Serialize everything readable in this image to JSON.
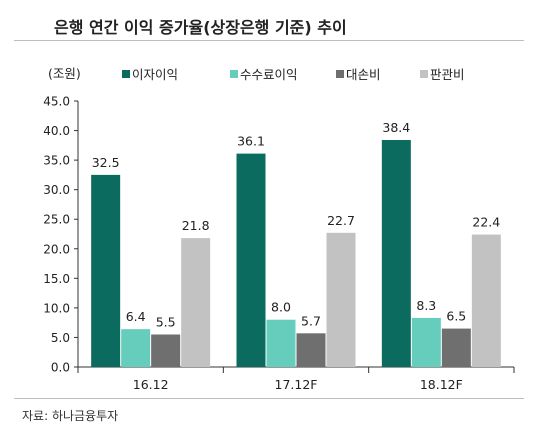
{
  "chart_data": {
    "type": "bar",
    "title": "은행 연간 이익 증가율(상장은행 기준) 추이",
    "unit_label": "(조원)",
    "categories": [
      "16.12",
      "17.12F",
      "18.12F"
    ],
    "series": [
      {
        "name": "이자이익",
        "color": "#0b6b5f",
        "values": [
          32.5,
          36.1,
          38.4
        ],
        "labels": [
          "32.5",
          "36.1",
          "38.4"
        ]
      },
      {
        "name": "수수료이익",
        "color": "#66cdbd",
        "values": [
          6.4,
          8.0,
          8.3
        ],
        "labels": [
          "6.4",
          "8.0",
          "8.3"
        ]
      },
      {
        "name": "대손비",
        "color": "#6f6f6f",
        "values": [
          5.5,
          5.7,
          6.5
        ],
        "labels": [
          "5.5",
          "5.7",
          "6.5"
        ]
      },
      {
        "name": "판관비",
        "color": "#c2c2c2",
        "values": [
          21.8,
          22.7,
          22.4
        ],
        "labels": [
          "21.8",
          "22.7",
          "22.4"
        ]
      }
    ],
    "ylim": [
      0,
      45
    ],
    "yticks": [
      "0.0",
      "5.0",
      "10.0",
      "15.0",
      "20.0",
      "25.0",
      "30.0",
      "35.0",
      "40.0",
      "45.0"
    ],
    "legend_position": "top",
    "grid": false
  },
  "source": "자료: 하나금융투자"
}
